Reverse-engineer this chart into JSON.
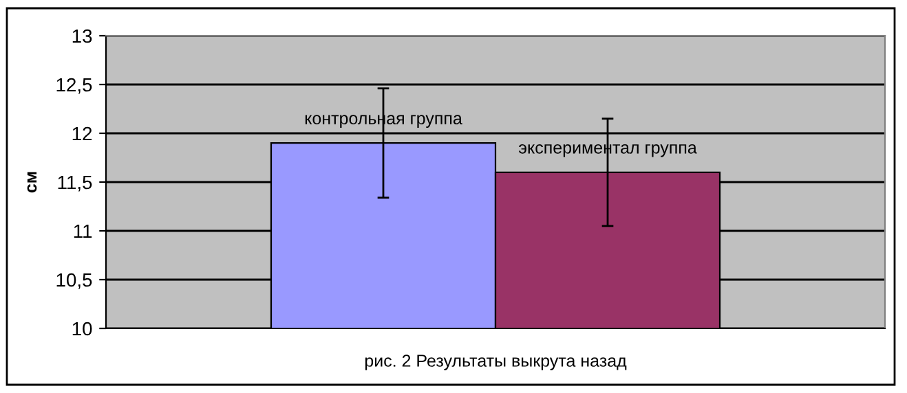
{
  "chart_data": {
    "type": "bar",
    "xlabel": "рис. 2 Результаты выкрута назад",
    "ylabel": "см",
    "categories": [
      null
    ],
    "series": [
      {
        "name": "контрольная группа",
        "color": "#9999ff",
        "values": [
          11.9
        ],
        "errors": [
          0.56
        ]
      },
      {
        "name": "экспериментал группа",
        "color": "#993366",
        "values": [
          11.6
        ],
        "errors": [
          0.55
        ]
      }
    ],
    "ylim": [
      10,
      13
    ],
    "yticks": [
      10,
      {
        "value": 10.5,
        "label": "10,5"
      },
      11,
      {
        "value": 11.5,
        "label": "11,5"
      },
      12,
      {
        "value": 12.5,
        "label": "12,5"
      },
      13
    ],
    "grid": "y",
    "legend": false
  }
}
